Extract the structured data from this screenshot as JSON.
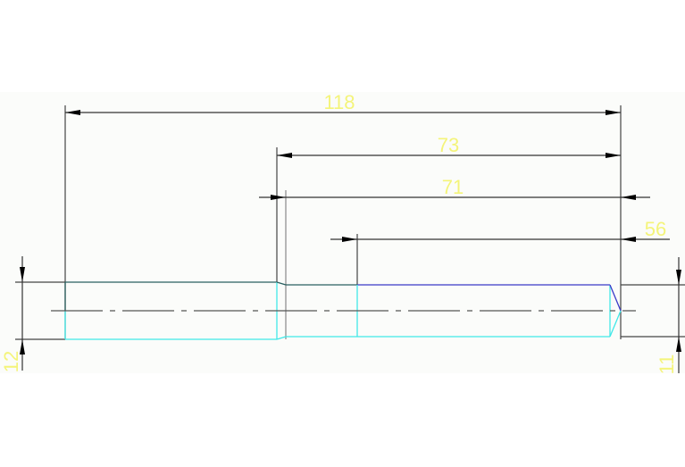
{
  "colors": {
    "background": "#ffffff",
    "drawing_area": "#fbfcfa",
    "dimension_text": "#f4f47a",
    "dimension_line": "#333333",
    "outline_cyan": "#40e8e8",
    "outline_blue": "#3a3ac8",
    "outline_dark": "#2a6060"
  },
  "dimensions": {
    "overall_length": "118",
    "step_length": "73",
    "chamfer_to_end": "71",
    "groove_to_end": "56",
    "left_diameter": "12",
    "right_diameter": "11"
  }
}
